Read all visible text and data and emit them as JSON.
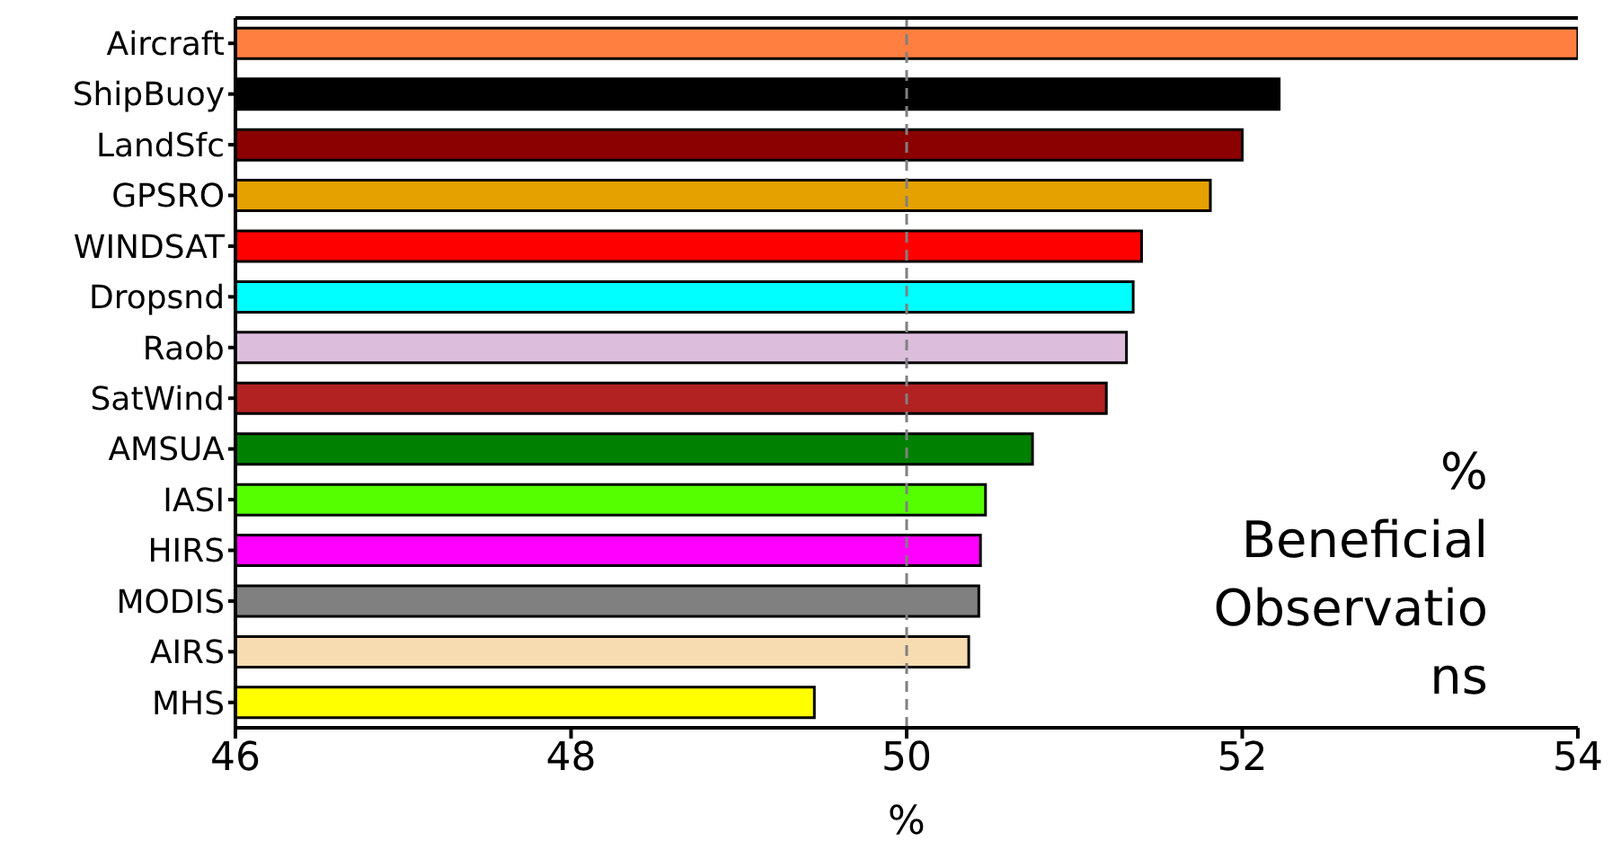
{
  "chart_data": {
    "type": "bar",
    "orientation": "horizontal",
    "xlabel": "%",
    "categories": [
      "Aircraft",
      "ShipBuoy",
      "LandSfc",
      "GPSRO",
      "WINDSAT",
      "Dropsnd",
      "Raob",
      "SatWind",
      "AMSUA",
      "IASI",
      "HIRS",
      "MODIS",
      "AIRS",
      "MHS"
    ],
    "values": [
      54,
      52.22,
      52.0,
      51.81,
      51.4,
      51.35,
      51.31,
      51.19,
      50.75,
      50.47,
      50.44,
      50.43,
      50.37,
      49.45
    ],
    "colors": [
      "#ff7f40",
      "#000000",
      "#8b0000",
      "#e5a100",
      "#ff0000",
      "#00ffff",
      "#dcbedc",
      "#b22222",
      "#008000",
      "#55ff00",
      "#ff00ff",
      "#808080",
      "#f6dcb0",
      "#ffff00"
    ],
    "xlim": [
      46,
      54
    ],
    "xticks": [
      46,
      48,
      50,
      52,
      54
    ],
    "grid": false,
    "ref_lines": [
      {
        "axis": "x",
        "value": 50,
        "line_style": "dashed",
        "color": "#808080"
      }
    ],
    "annotations": [
      "% Beneficial Observations"
    ]
  }
}
